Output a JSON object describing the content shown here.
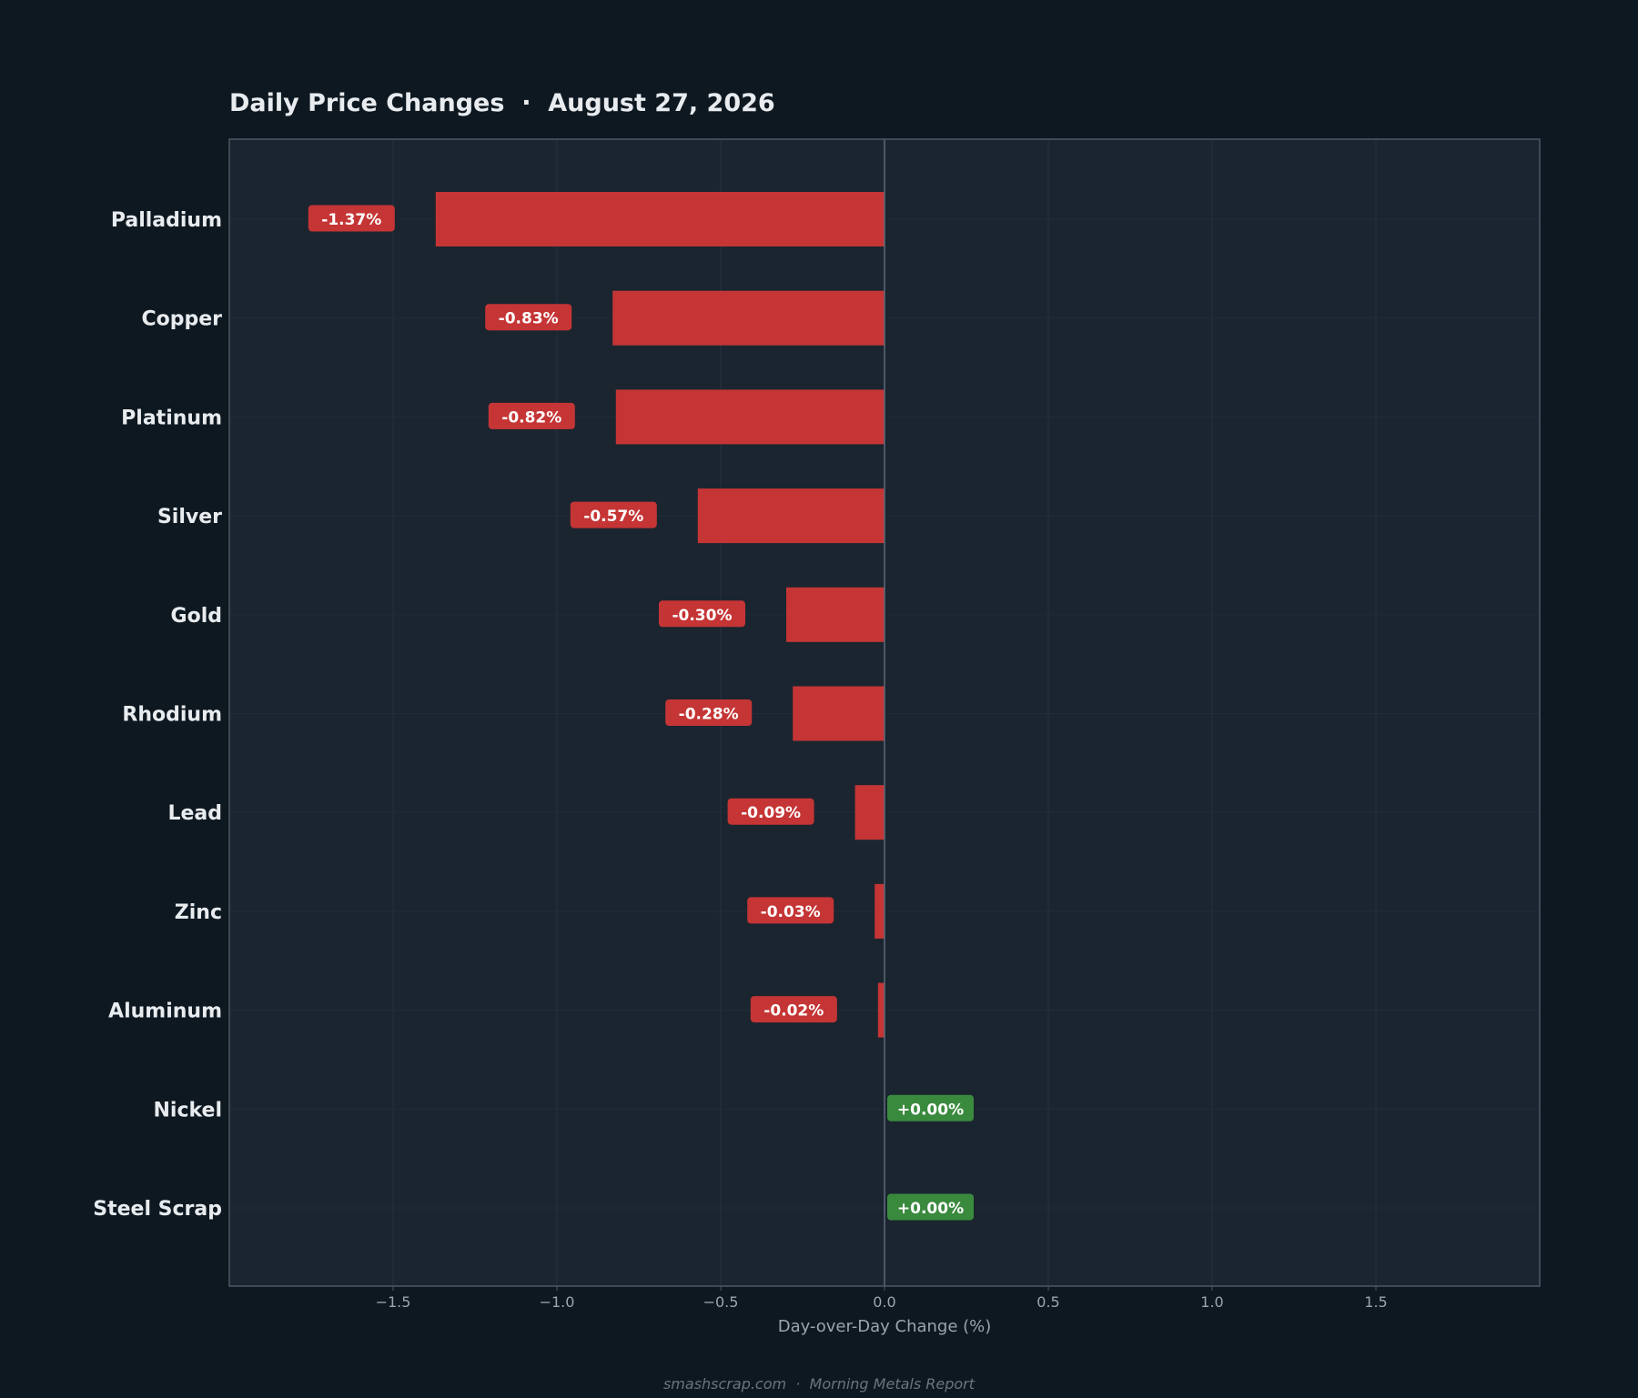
{
  "chart_data": {
    "type": "bar",
    "orientation": "horizontal",
    "title": "Daily Price Changes  ·  August 27, 2026",
    "xlabel": "Day-over-Day Change (%)",
    "ylabel": "",
    "xlim": [
      -2.0,
      2.0
    ],
    "xticks": [
      -1.5,
      -1.0,
      -0.5,
      0.0,
      0.5,
      1.0,
      1.5
    ],
    "xtick_labels": [
      "−1.5",
      "−1.0",
      "−0.5",
      "0.0",
      "0.5",
      "1.0",
      "1.5"
    ],
    "grid": true,
    "categories": [
      "Palladium",
      "Copper",
      "Platinum",
      "Silver",
      "Gold",
      "Rhodium",
      "Lead",
      "Zinc",
      "Aluminum",
      "Nickel",
      "Steel Scrap"
    ],
    "values": [
      -1.37,
      -0.83,
      -0.82,
      -0.57,
      -0.3,
      -0.28,
      -0.09,
      -0.03,
      -0.02,
      0.0,
      0.0
    ],
    "data_labels": [
      "-1.37%",
      "-0.83%",
      "-0.82%",
      "-0.57%",
      "-0.30%",
      "-0.28%",
      "-0.09%",
      "-0.03%",
      "-0.02%",
      "+0.00%",
      "+0.00%"
    ],
    "colors": {
      "negative": "#c53535",
      "positive": "#3a8a3e",
      "background": "#0e1821",
      "plot_background": "#1b2530",
      "plot_border": "#4a5866",
      "zero_line": "#5c6a78",
      "title_text": "#e8ecef",
      "category_text": "#e8ecef",
      "tick_text": "#9aa5ae",
      "footer_text": "#6a747d"
    }
  },
  "footer": {
    "text": "smashscrap.com  ·  Morning Metals Report"
  }
}
